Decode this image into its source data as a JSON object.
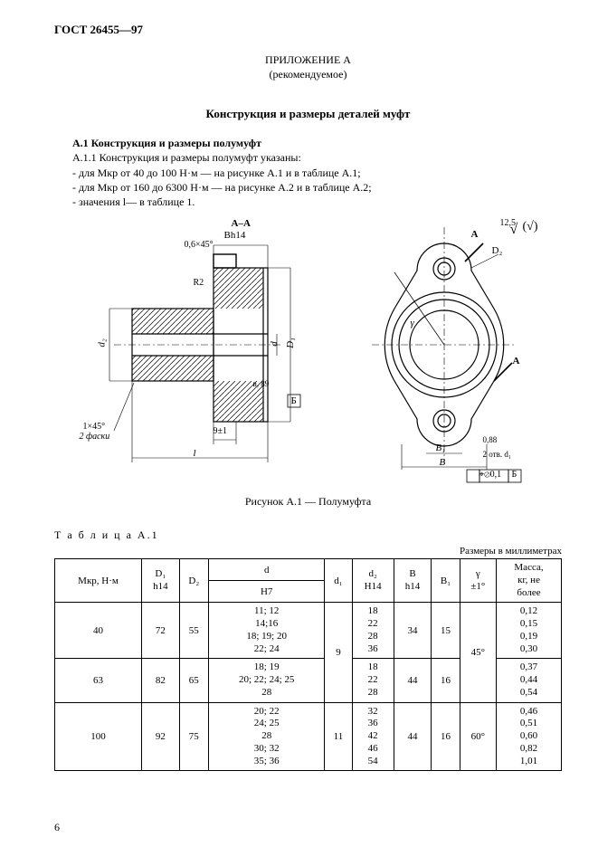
{
  "doc_id": "ГОСТ 26455—97",
  "appendix": {
    "title": "ПРИЛОЖЕНИЕ А",
    "note": "(рекомендуемое)"
  },
  "section_title": "Конструкция и размеры деталей муфт",
  "para": {
    "head": "А.1  Конструкция и размеры полумуфт",
    "l1": "А.1.1  Конструкция и размеры полумуфт указаны:",
    "l2": "- для Mкр от 40 до 100 Н·м — на рисунке А.1 и в таблице А.1;",
    "l3": "- для Mкр от 160 до 6300 Н·м — на рисунке А.2 и в таблице А.2;",
    "l4": "- значения l— в таблице 1."
  },
  "figure": {
    "caption": "Рисунок А.1 — Полумуфта",
    "labels": {
      "section": "А–А",
      "bh14": "Bh14",
      "chamf1": "0,6×45°",
      "r2": "R2",
      "d2": "d₂",
      "d": "d",
      "D1": "D₁",
      "b_tol": "в, 89",
      "b_box": "Б",
      "chamf2": "1×45°",
      "chamf2b": "2 фаски",
      "dim9": "9±1",
      "l": "l",
      "gamma": "γ",
      "D2": "D₂",
      "A_arrow1": "A",
      "A_arrow2": "A",
      "surf": "12,5",
      "surf2": "(√)",
      "B1": "B₁",
      "B": "B",
      "d1_note": "2 отв. d₁",
      "tol1": "0,88",
      "gd": "⌖⊘0,1",
      "gd2": "Б"
    }
  },
  "table": {
    "label": "Т а б л и ц а  А.1",
    "units": "Размеры в миллиметрах",
    "headers": {
      "mkr": "Mкр, Н·м",
      "D1": "D₁\nh14",
      "D2": "D₂",
      "d": "d",
      "H7": "H7",
      "d1": "d₁",
      "d2": "d₂\nH14",
      "B": "B\nh14",
      "B1": "B₁",
      "gamma": "γ\n±1°",
      "mass": "Масса,\nкг, не\nболее"
    },
    "rows": [
      {
        "mkr": "40",
        "D1": "72",
        "D2": "55",
        "d": "11; 12\n14;16\n18; 19; 20\n22; 24",
        "d1": "9",
        "d2": "18\n22\n28\n36",
        "B": "34",
        "B1": "15",
        "gamma": "45°",
        "mass": "0,12\n0,15\n0,19\n0,30"
      },
      {
        "mkr": "63",
        "D1": "82",
        "D2": "65",
        "d": "18; 19\n20; 22; 24; 25\n28",
        "d1": "9",
        "d2": "18\n22\n28",
        "B": "44",
        "B1": "16",
        "gamma": "45°",
        "mass": "0,37\n0,44\n0,54"
      },
      {
        "mkr": "100",
        "D1": "92",
        "D2": "75",
        "d": "20; 22\n24; 25\n28\n30; 32\n35; 36",
        "d1": "11",
        "d2": "32\n36\n42\n46\n54",
        "B": "44",
        "B1": "16",
        "gamma": "60°",
        "mass": "0,46\n0,51\n0,60\n0,82\n1,01"
      }
    ],
    "page_num": "6"
  },
  "style": {
    "line_color": "#000000",
    "bg_color": "#ffffff",
    "hatch_color": "#000000"
  }
}
